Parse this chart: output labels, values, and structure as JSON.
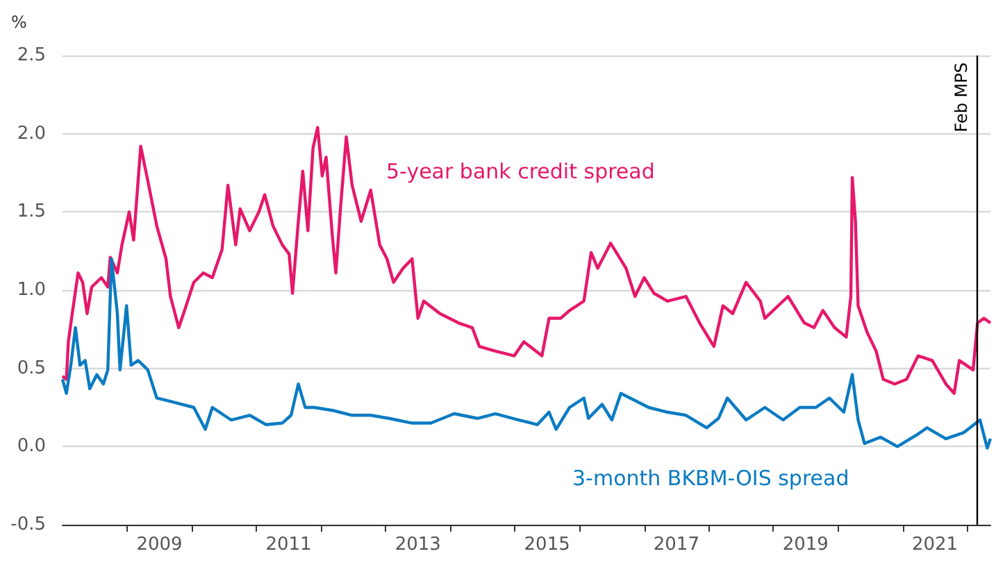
{
  "chart_data": {
    "type": "line",
    "ylabel": "%",
    "legend": false,
    "grid": "y",
    "marker": "none",
    "line_style": "solid",
    "xlim": [
      "2008-01-01",
      "2022-05-12"
    ],
    "ylim": [
      -0.5,
      2.5
    ],
    "yticks": [
      -0.5,
      {
        "value": 0,
        "label": "0.0"
      },
      0.5,
      {
        "value": 1,
        "label": "1.0"
      },
      1.5,
      {
        "value": 2,
        "label": "2.0"
      },
      2.5
    ],
    "xticks": [
      {
        "value": "2009-01-01",
        "label": null
      },
      {
        "value": "2010-01-01",
        "label": null
      },
      {
        "value": "2011-01-01",
        "label": null
      },
      {
        "value": "2012-01-01",
        "label": null
      },
      {
        "value": "2013-01-01",
        "label": null
      },
      {
        "value": "2014-01-01",
        "label": null
      },
      {
        "value": "2015-01-01",
        "label": null
      },
      {
        "value": "2016-01-01",
        "label": null
      },
      {
        "value": "2017-01-01",
        "label": null
      },
      {
        "value": "2018-01-01",
        "label": null
      },
      {
        "value": "2019-01-01",
        "label": null
      },
      {
        "value": "2020-01-01",
        "label": null
      },
      {
        "value": "2021-01-01",
        "label": null
      },
      {
        "value": "2022-01-01",
        "label": null
      },
      {
        "value": "2009-07-02",
        "label": "2009"
      },
      {
        "value": "2011-07-02",
        "label": "2011"
      },
      {
        "value": "2013-07-02",
        "label": "2013"
      },
      {
        "value": "2015-07-02",
        "label": "2015"
      },
      {
        "value": "2017-07-02",
        "label": "2017"
      },
      {
        "value": "2019-07-02",
        "label": "2019"
      },
      {
        "value": "2021-07-02",
        "label": "2021"
      }
    ],
    "ref_lines": [
      {
        "axis": "x",
        "value": "2022-02-23",
        "label": "Feb MPS",
        "color": "#000000"
      }
    ],
    "series": [
      {
        "name": "5-year bank credit spread",
        "color": "#e6186a",
        "x": [
          "2008-01-01",
          "2008-01-23",
          "2008-02-03",
          "2008-02-25",
          "2008-03-29",
          "2008-04-24",
          "2008-05-19",
          "2008-06-14",
          "2008-08-08",
          "2008-09-13",
          "2008-09-27",
          "2008-11-06",
          "2008-12-02",
          "2009-01-12",
          "2009-02-06",
          "2009-03-18",
          "2009-04-27",
          "2009-06-17",
          "2009-08-08",
          "2009-09-02",
          "2009-10-19",
          "2009-11-21",
          "2010-01-12",
          "2010-03-07",
          "2010-04-27",
          "2010-06-21",
          "2010-07-24",
          "2010-09-06",
          "2010-10-01",
          "2010-11-24",
          "2011-01-15",
          "2011-02-17",
          "2011-04-05",
          "2011-05-27",
          "2011-07-05",
          "2011-07-24",
          "2011-08-26",
          "2011-09-20",
          "2011-10-19",
          "2011-11-17",
          "2011-12-13",
          "2012-01-08",
          "2012-01-30",
          "2012-03-05",
          "2012-03-25",
          "2012-04-20",
          "2012-05-23",
          "2012-06-25",
          "2012-08-15",
          "2012-10-08",
          "2012-11-28",
          "2013-01-08",
          "2013-02-14",
          "2013-04-09",
          "2013-05-30",
          "2013-07-02",
          "2013-08-04",
          "2013-11-03",
          "2014-02-17",
          "2014-05-05",
          "2014-06-14",
          "2014-09-13",
          "2014-12-28",
          "2015-02-21",
          "2015-06-03",
          "2015-07-13",
          "2015-09-16",
          "2015-11-06",
          "2016-01-26",
          "2016-03-07",
          "2016-04-13",
          "2016-06-25",
          "2016-09-20",
          "2016-11-10",
          "2017-01-01",
          "2017-02-25",
          "2017-05-12",
          "2017-08-25",
          "2017-11-10",
          "2018-01-30",
          "2018-03-22",
          "2018-05-16",
          "2018-07-31",
          "2018-10-19",
          "2018-11-14",
          "2019-03-25",
          "2019-06-25",
          "2019-08-19",
          "2019-10-08",
          "2019-12-13",
          "2020-02-17",
          "2020-03-14",
          "2020-03-22",
          "2020-04-09",
          "2020-04-24",
          "2020-06-14",
          "2020-08-04",
          "2020-09-13",
          "2020-11-17",
          "2021-01-23",
          "2021-03-29",
          "2021-06-17",
          "2021-09-02",
          "2021-10-19",
          "2021-11-17",
          "2022-02-03",
          "2022-02-28",
          "2022-04-05",
          "2022-05-12"
        ],
        "values": [
          0.45,
          0.43,
          0.67,
          0.85,
          1.11,
          1.05,
          0.85,
          1.02,
          1.08,
          1.02,
          1.21,
          1.11,
          1.29,
          1.5,
          1.32,
          1.92,
          1.7,
          1.41,
          1.2,
          0.96,
          0.76,
          0.87,
          1.05,
          1.11,
          1.08,
          1.26,
          1.67,
          1.29,
          1.52,
          1.38,
          1.5,
          1.61,
          1.41,
          1.29,
          1.23,
          0.98,
          1.44,
          1.76,
          1.38,
          1.91,
          2.04,
          1.73,
          1.85,
          1.35,
          1.11,
          1.52,
          1.98,
          1.67,
          1.44,
          1.64,
          1.29,
          1.2,
          1.05,
          1.14,
          1.2,
          0.82,
          0.93,
          0.85,
          0.79,
          0.76,
          0.64,
          0.61,
          0.58,
          0.67,
          0.58,
          0.82,
          0.82,
          0.87,
          0.93,
          1.24,
          1.14,
          1.3,
          1.14,
          0.96,
          1.08,
          0.98,
          0.93,
          0.96,
          0.79,
          0.64,
          0.9,
          0.85,
          1.05,
          0.93,
          0.82,
          0.96,
          0.79,
          0.76,
          0.87,
          0.76,
          0.7,
          0.96,
          1.72,
          1.44,
          0.9,
          0.73,
          0.61,
          0.43,
          0.4,
          0.43,
          0.58,
          0.55,
          0.4,
          0.34,
          0.55,
          0.49,
          0.79,
          0.82,
          0.79
        ]
      },
      {
        "name": "3-month BKBM-OIS spread",
        "color": "#0a7bc2",
        "x": [
          "2008-01-01",
          "2008-01-23",
          "2008-02-17",
          "2008-03-14",
          "2008-04-09",
          "2008-05-08",
          "2008-06-03",
          "2008-07-13",
          "2008-08-19",
          "2008-09-13",
          "2008-10-04",
          "2008-11-06",
          "2008-11-21",
          "2008-12-28",
          "2009-01-23",
          "2009-03-04",
          "2009-04-27",
          "2009-06-17",
          "2009-10-01",
          "2010-01-12",
          "2010-03-18",
          "2010-04-27",
          "2010-08-11",
          "2010-11-24",
          "2011-02-25",
          "2011-05-27",
          "2011-07-16",
          "2011-08-26",
          "2011-10-04",
          "2011-11-24",
          "2012-03-11",
          "2012-06-25",
          "2012-10-08",
          "2013-01-19",
          "2013-05-30",
          "2013-09-13",
          "2014-01-23",
          "2014-06-03",
          "2014-09-13",
          "2015-01-23",
          "2015-05-08",
          "2015-07-13",
          "2015-08-22",
          "2015-11-06",
          "2016-01-26",
          "2016-02-21",
          "2016-05-08",
          "2016-07-02",
          "2016-08-22",
          "2016-12-05",
          "2017-01-26",
          "2017-05-12",
          "2017-08-25",
          "2017-12-20",
          "2018-02-25",
          "2018-04-16",
          "2018-07-31",
          "2018-11-14",
          "2019-02-25",
          "2019-05-30",
          "2019-08-29",
          "2019-11-14",
          "2020-02-03",
          "2020-03-22",
          "2020-04-24",
          "2020-05-30",
          "2020-08-29",
          "2020-12-02",
          "2021-03-29",
          "2021-05-19",
          "2021-09-02",
          "2021-12-13",
          "2022-03-14",
          "2022-04-24",
          "2022-05-12"
        ],
        "values": [
          0.43,
          0.34,
          0.52,
          0.76,
          0.52,
          0.55,
          0.37,
          0.46,
          0.4,
          0.49,
          1.2,
          0.85,
          0.49,
          0.9,
          0.52,
          0.55,
          0.49,
          0.31,
          0.28,
          0.25,
          0.11,
          0.25,
          0.17,
          0.2,
          0.14,
          0.15,
          0.2,
          0.4,
          0.25,
          0.25,
          0.23,
          0.2,
          0.2,
          0.18,
          0.15,
          0.15,
          0.21,
          0.18,
          0.21,
          0.17,
          0.14,
          0.22,
          0.11,
          0.25,
          0.31,
          0.18,
          0.27,
          0.17,
          0.34,
          0.28,
          0.25,
          0.22,
          0.2,
          0.12,
          0.18,
          0.31,
          0.17,
          0.25,
          0.17,
          0.25,
          0.25,
          0.31,
          0.22,
          0.46,
          0.17,
          0.02,
          0.06,
          0.0,
          0.08,
          0.12,
          0.05,
          0.09,
          0.17,
          -0.01,
          0.05
        ]
      }
    ]
  }
}
